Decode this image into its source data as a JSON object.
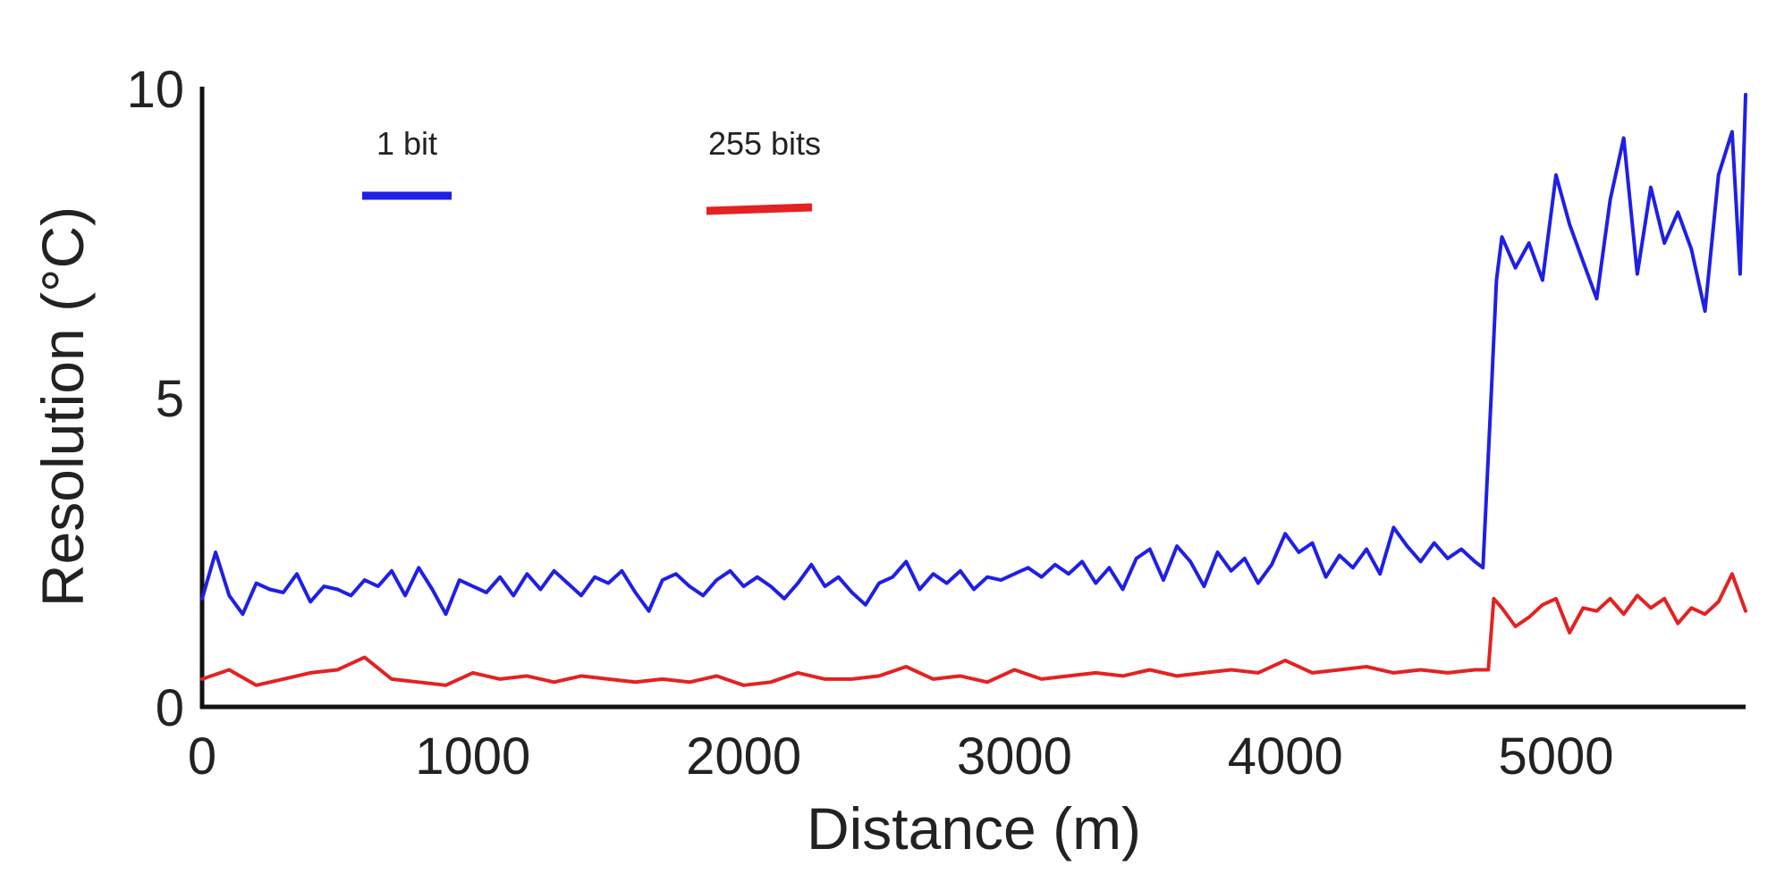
{
  "chart_data": {
    "type": "line",
    "title": "",
    "xlabel": "Distance (m)",
    "ylabel": "Resolution (°C)",
    "xlim": [
      0,
      5700
    ],
    "ylim": [
      0,
      10
    ],
    "x_ticks": [
      "0",
      "1000",
      "2000",
      "3000",
      "4000",
      "5000"
    ],
    "y_ticks": [
      "0",
      "5",
      "10"
    ],
    "grid": false,
    "legend_placement": "top-left",
    "series": [
      {
        "name": "1 bit",
        "color": "#1f1fe6",
        "points": [
          [
            0,
            1.75
          ],
          [
            50,
            2.5
          ],
          [
            100,
            1.8
          ],
          [
            150,
            1.5
          ],
          [
            200,
            2.0
          ],
          [
            250,
            1.9
          ],
          [
            300,
            1.85
          ],
          [
            350,
            2.15
          ],
          [
            400,
            1.7
          ],
          [
            450,
            1.95
          ],
          [
            500,
            1.9
          ],
          [
            550,
            1.8
          ],
          [
            600,
            2.05
          ],
          [
            650,
            1.95
          ],
          [
            700,
            2.2
          ],
          [
            750,
            1.8
          ],
          [
            800,
            2.25
          ],
          [
            850,
            1.9
          ],
          [
            900,
            1.5
          ],
          [
            950,
            2.05
          ],
          [
            1000,
            1.95
          ],
          [
            1050,
            1.85
          ],
          [
            1100,
            2.1
          ],
          [
            1150,
            1.8
          ],
          [
            1200,
            2.15
          ],
          [
            1250,
            1.9
          ],
          [
            1300,
            2.2
          ],
          [
            1350,
            2.0
          ],
          [
            1400,
            1.8
          ],
          [
            1450,
            2.1
          ],
          [
            1500,
            2.0
          ],
          [
            1550,
            2.2
          ],
          [
            1600,
            1.85
          ],
          [
            1650,
            1.55
          ],
          [
            1700,
            2.05
          ],
          [
            1750,
            2.15
          ],
          [
            1800,
            1.95
          ],
          [
            1850,
            1.8
          ],
          [
            1900,
            2.05
          ],
          [
            1950,
            2.2
          ],
          [
            2000,
            1.95
          ],
          [
            2050,
            2.1
          ],
          [
            2100,
            1.95
          ],
          [
            2150,
            1.75
          ],
          [
            2200,
            2.0
          ],
          [
            2250,
            2.3
          ],
          [
            2300,
            1.95
          ],
          [
            2350,
            2.1
          ],
          [
            2400,
            1.85
          ],
          [
            2450,
            1.65
          ],
          [
            2500,
            2.0
          ],
          [
            2550,
            2.1
          ],
          [
            2600,
            2.35
          ],
          [
            2650,
            1.9
          ],
          [
            2700,
            2.15
          ],
          [
            2750,
            2.0
          ],
          [
            2800,
            2.2
          ],
          [
            2850,
            1.9
          ],
          [
            2900,
            2.1
          ],
          [
            2950,
            2.05
          ],
          [
            3000,
            2.15
          ],
          [
            3050,
            2.25
          ],
          [
            3100,
            2.1
          ],
          [
            3150,
            2.3
          ],
          [
            3200,
            2.15
          ],
          [
            3250,
            2.35
          ],
          [
            3300,
            2.0
          ],
          [
            3350,
            2.25
          ],
          [
            3400,
            1.9
          ],
          [
            3450,
            2.4
          ],
          [
            3500,
            2.55
          ],
          [
            3550,
            2.05
          ],
          [
            3600,
            2.6
          ],
          [
            3650,
            2.35
          ],
          [
            3700,
            1.95
          ],
          [
            3750,
            2.5
          ],
          [
            3800,
            2.2
          ],
          [
            3850,
            2.4
          ],
          [
            3900,
            2.0
          ],
          [
            3950,
            2.3
          ],
          [
            4000,
            2.8
          ],
          [
            4050,
            2.5
          ],
          [
            4100,
            2.65
          ],
          [
            4150,
            2.1
          ],
          [
            4200,
            2.45
          ],
          [
            4250,
            2.25
          ],
          [
            4300,
            2.55
          ],
          [
            4350,
            2.15
          ],
          [
            4400,
            2.9
          ],
          [
            4450,
            2.6
          ],
          [
            4500,
            2.35
          ],
          [
            4550,
            2.65
          ],
          [
            4600,
            2.4
          ],
          [
            4650,
            2.55
          ],
          [
            4700,
            2.35
          ],
          [
            4730,
            2.25
          ],
          [
            4760,
            5.0
          ],
          [
            4780,
            6.9
          ],
          [
            4800,
            7.6
          ],
          [
            4850,
            7.1
          ],
          [
            4900,
            7.5
          ],
          [
            4950,
            6.9
          ],
          [
            5000,
            8.6
          ],
          [
            5050,
            7.8
          ],
          [
            5100,
            7.2
          ],
          [
            5150,
            6.6
          ],
          [
            5200,
            8.2
          ],
          [
            5250,
            9.2
          ],
          [
            5300,
            7.0
          ],
          [
            5350,
            8.4
          ],
          [
            5400,
            7.5
          ],
          [
            5450,
            8.0
          ],
          [
            5500,
            7.4
          ],
          [
            5550,
            6.4
          ],
          [
            5600,
            8.6
          ],
          [
            5650,
            9.3
          ],
          [
            5680,
            7.0
          ],
          [
            5700,
            9.9
          ]
        ]
      },
      {
        "name": "255 bits",
        "color": "#e32222",
        "points": [
          [
            0,
            0.45
          ],
          [
            100,
            0.6
          ],
          [
            200,
            0.35
          ],
          [
            300,
            0.45
          ],
          [
            400,
            0.55
          ],
          [
            500,
            0.6
          ],
          [
            600,
            0.8
          ],
          [
            700,
            0.45
          ],
          [
            800,
            0.4
          ],
          [
            900,
            0.35
          ],
          [
            1000,
            0.55
          ],
          [
            1100,
            0.45
          ],
          [
            1200,
            0.5
          ],
          [
            1300,
            0.4
          ],
          [
            1400,
            0.5
          ],
          [
            1500,
            0.45
          ],
          [
            1600,
            0.4
          ],
          [
            1700,
            0.45
          ],
          [
            1800,
            0.4
          ],
          [
            1900,
            0.5
          ],
          [
            2000,
            0.35
          ],
          [
            2100,
            0.4
          ],
          [
            2200,
            0.55
          ],
          [
            2300,
            0.45
          ],
          [
            2400,
            0.45
          ],
          [
            2500,
            0.5
          ],
          [
            2600,
            0.65
          ],
          [
            2700,
            0.45
          ],
          [
            2800,
            0.5
          ],
          [
            2900,
            0.4
          ],
          [
            3000,
            0.6
          ],
          [
            3100,
            0.45
          ],
          [
            3200,
            0.5
          ],
          [
            3300,
            0.55
          ],
          [
            3400,
            0.5
          ],
          [
            3500,
            0.6
          ],
          [
            3600,
            0.5
          ],
          [
            3700,
            0.55
          ],
          [
            3800,
            0.6
          ],
          [
            3900,
            0.55
          ],
          [
            4000,
            0.75
          ],
          [
            4100,
            0.55
          ],
          [
            4200,
            0.6
          ],
          [
            4300,
            0.65
          ],
          [
            4400,
            0.55
          ],
          [
            4500,
            0.6
          ],
          [
            4600,
            0.55
          ],
          [
            4700,
            0.6
          ],
          [
            4750,
            0.6
          ],
          [
            4770,
            1.75
          ],
          [
            4800,
            1.6
          ],
          [
            4850,
            1.3
          ],
          [
            4900,
            1.45
          ],
          [
            4950,
            1.65
          ],
          [
            5000,
            1.75
          ],
          [
            5050,
            1.2
          ],
          [
            5100,
            1.6
          ],
          [
            5150,
            1.55
          ],
          [
            5200,
            1.75
          ],
          [
            5250,
            1.5
          ],
          [
            5300,
            1.8
          ],
          [
            5350,
            1.6
          ],
          [
            5400,
            1.75
          ],
          [
            5450,
            1.35
          ],
          [
            5500,
            1.6
          ],
          [
            5550,
            1.5
          ],
          [
            5600,
            1.7
          ],
          [
            5650,
            2.15
          ],
          [
            5700,
            1.55
          ]
        ]
      }
    ]
  }
}
